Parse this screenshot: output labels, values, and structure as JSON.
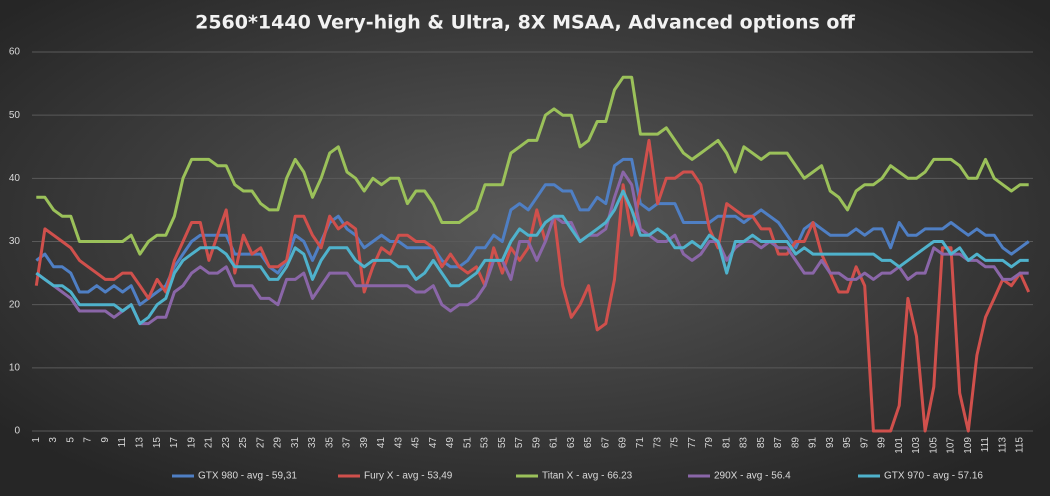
{
  "chart_data": {
    "type": "line",
    "title": "2560*1440 Very-high  & Ultra, 8X MSAA, Advanced options  off",
    "categories": [
      1,
      null,
      3,
      null,
      5,
      null,
      7,
      null,
      9,
      null,
      11,
      null,
      13,
      null,
      15,
      null,
      17,
      null,
      19,
      null,
      21,
      null,
      23,
      null,
      25,
      null,
      27,
      null,
      29,
      null,
      31,
      null,
      33,
      null,
      35,
      null,
      37,
      null,
      39,
      null,
      41,
      null,
      43,
      null,
      45,
      null,
      47,
      null,
      49,
      null,
      51,
      null,
      53,
      null,
      55,
      null,
      57,
      null,
      59,
      null,
      61,
      null,
      63,
      null,
      65,
      null,
      67,
      null,
      69,
      null,
      71,
      null,
      73,
      null,
      75,
      null,
      77,
      null,
      79,
      null,
      81,
      null,
      83,
      null,
      85,
      null,
      87,
      null,
      89,
      null,
      91,
      null,
      93,
      null,
      95,
      null,
      97,
      null,
      99,
      null,
      101,
      null,
      103,
      null,
      105,
      null,
      107,
      null,
      109,
      null,
      111,
      null,
      113,
      null,
      115,
      null
    ],
    "series": [
      {
        "name": "GTX 980 - avg - 59,31",
        "color": "#4f7fc4",
        "values": [
          27,
          28,
          26,
          26,
          25,
          22,
          22,
          23,
          22,
          23,
          22,
          23,
          20,
          21,
          22,
          23,
          26,
          28,
          30,
          31,
          31,
          31,
          31,
          28,
          28,
          28,
          28,
          26,
          25,
          27,
          31,
          30,
          27,
          30,
          33,
          34,
          32,
          31,
          29,
          30,
          31,
          30,
          30,
          29,
          29,
          29,
          29,
          27,
          26,
          26,
          27,
          29,
          29,
          31,
          30,
          35,
          36,
          35,
          37,
          39,
          39,
          38,
          38,
          35,
          35,
          37,
          36,
          42,
          43,
          43,
          36,
          35,
          36,
          36,
          36,
          33,
          33,
          33,
          33,
          34,
          34,
          34,
          33,
          34,
          35,
          34,
          33,
          31,
          29,
          32,
          33,
          32,
          31,
          31,
          31,
          32,
          31,
          32,
          32,
          29,
          33,
          31,
          31,
          32,
          32,
          32,
          33,
          32,
          31,
          32,
          31,
          31,
          29,
          28,
          29,
          30
        ]
      },
      {
        "name": "Fury X - avg - 53,49",
        "color": "#d0504c",
        "values": [
          23,
          32,
          31,
          30,
          29,
          27,
          26,
          25,
          24,
          24,
          25,
          25,
          23,
          21,
          24,
          22,
          27,
          30,
          33,
          33,
          27,
          31,
          35,
          25,
          31,
          28,
          29,
          26,
          26,
          27,
          34,
          34,
          31,
          29,
          34,
          32,
          33,
          32,
          22,
          26,
          29,
          28,
          31,
          31,
          30,
          30,
          29,
          26,
          28,
          26,
          25,
          26,
          23,
          29,
          25,
          29,
          27,
          29,
          35,
          30,
          34,
          23,
          18,
          20,
          23,
          16,
          17,
          24,
          39,
          31,
          38,
          46,
          36,
          40,
          40,
          41,
          41,
          39,
          32,
          29,
          36,
          35,
          34,
          34,
          32,
          32,
          28,
          28,
          30,
          30,
          33,
          28,
          25,
          22,
          22,
          26,
          23,
          0,
          0,
          0,
          4,
          21,
          15,
          0,
          7,
          29,
          29,
          6,
          0,
          12,
          18,
          21,
          24,
          23,
          25,
          22
        ]
      },
      {
        "name": "Titan X - avg - 66.23",
        "color": "#9bc15a",
        "values": [
          37,
          37,
          35,
          34,
          34,
          30,
          30,
          30,
          30,
          30,
          30,
          31,
          28,
          30,
          31,
          31,
          34,
          40,
          43,
          43,
          43,
          42,
          42,
          39,
          38,
          38,
          36,
          35,
          35,
          40,
          43,
          41,
          37,
          40,
          44,
          45,
          41,
          40,
          38,
          40,
          39,
          40,
          40,
          36,
          38,
          38,
          36,
          33,
          33,
          33,
          34,
          35,
          39,
          39,
          39,
          44,
          45,
          46,
          46,
          50,
          51,
          50,
          50,
          45,
          46,
          49,
          49,
          54,
          56,
          56,
          47,
          47,
          47,
          48,
          46,
          44,
          43,
          44,
          45,
          46,
          44,
          41,
          45,
          44,
          43,
          44,
          44,
          44,
          42,
          40,
          41,
          42,
          38,
          37,
          35,
          38,
          39,
          39,
          40,
          42,
          41,
          40,
          40,
          41,
          43,
          43,
          43,
          42,
          40,
          40,
          43,
          40,
          39,
          38,
          39,
          39
        ]
      },
      {
        "name": "290X - avg - 56.4",
        "color": "#8a66a8",
        "values": [
          25,
          24,
          23,
          22,
          21,
          19,
          19,
          19,
          19,
          18,
          19,
          20,
          17,
          17,
          18,
          18,
          22,
          23,
          25,
          26,
          25,
          25,
          26,
          23,
          23,
          23,
          21,
          21,
          20,
          24,
          24,
          25,
          21,
          23,
          25,
          25,
          25,
          23,
          23,
          23,
          23,
          23,
          23,
          23,
          22,
          22,
          23,
          20,
          19,
          20,
          20,
          21,
          23,
          27,
          27,
          24,
          30,
          30,
          27,
          30,
          34,
          33,
          33,
          30,
          31,
          31,
          32,
          37,
          41,
          39,
          32,
          31,
          30,
          30,
          31,
          28,
          27,
          28,
          30,
          30,
          27,
          29,
          30,
          30,
          29,
          30,
          29,
          29,
          27,
          25,
          25,
          27,
          25,
          25,
          24,
          24,
          25,
          24,
          25,
          25,
          26,
          24,
          25,
          25,
          29,
          28,
          28,
          28,
          27,
          27,
          26,
          26,
          24,
          24,
          25,
          25
        ]
      },
      {
        "name": "GTX 970 - avg - 57.16",
        "color": "#4fb2cc",
        "values": [
          25,
          24,
          23,
          23,
          22,
          20,
          20,
          20,
          20,
          20,
          19,
          20,
          17,
          18,
          20,
          21,
          25,
          27,
          28,
          29,
          29,
          29,
          28,
          26,
          26,
          26,
          26,
          24,
          24,
          26,
          29,
          28,
          24,
          27,
          29,
          29,
          29,
          27,
          26,
          27,
          27,
          27,
          26,
          26,
          24,
          25,
          27,
          25,
          23,
          23,
          24,
          25,
          27,
          27,
          27,
          30,
          32,
          31,
          31,
          33,
          34,
          34,
          32,
          30,
          31,
          32,
          33,
          35,
          38,
          35,
          31,
          31,
          32,
          31,
          29,
          29,
          30,
          29,
          31,
          30,
          25,
          30,
          30,
          31,
          30,
          30,
          30,
          30,
          28,
          29,
          28,
          28,
          28,
          28,
          28,
          28,
          28,
          28,
          27,
          27,
          26,
          27,
          28,
          29,
          30,
          30,
          28,
          29,
          27,
          28,
          27,
          27,
          27,
          26,
          27,
          27
        ]
      }
    ],
    "ylim": [
      0,
      60
    ],
    "yticks": [
      0,
      10,
      20,
      30,
      40,
      50,
      60
    ],
    "grid": true,
    "legend": "bottom"
  }
}
